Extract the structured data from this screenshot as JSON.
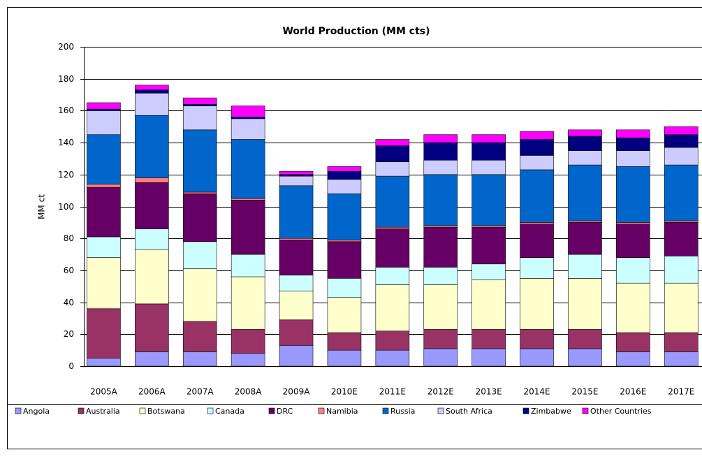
{
  "chart_data": {
    "type": "stacked_bar",
    "title": "World Production (MM cts)",
    "y_label": "MM ct",
    "categories": [
      "2005A",
      "2006A",
      "2007A",
      "2008A",
      "2009A",
      "2010E",
      "2011E",
      "2012E",
      "2013E",
      "2014E",
      "2015E",
      "2016E",
      "2017E"
    ],
    "series": [
      {
        "name": "Angola",
        "color": "#9999ff",
        "values": [
          5,
          9,
          9,
          8,
          13,
          10,
          10,
          11,
          11,
          11,
          11,
          9,
          9
        ]
      },
      {
        "name": "Australia",
        "color": "#993366",
        "values": [
          31,
          30,
          19,
          15,
          16,
          11,
          12,
          12,
          12,
          12,
          12,
          12,
          12
        ]
      },
      {
        "name": "Botswana",
        "color": "#ffffcc",
        "values": [
          32,
          34,
          33,
          33,
          18,
          22,
          29,
          28,
          31,
          32,
          32,
          31,
          31
        ]
      },
      {
        "name": "Canada",
        "color": "#ccffff",
        "values": [
          13,
          13,
          17,
          14,
          10,
          12,
          11,
          11,
          10,
          13,
          15,
          16,
          17
        ]
      },
      {
        "name": "DRC",
        "color": "#660066",
        "values": [
          31,
          29,
          30,
          34,
          22,
          23,
          24,
          25,
          23,
          21,
          20,
          21,
          21
        ]
      },
      {
        "name": "Namibia",
        "color": "#ff8080",
        "values": [
          2,
          3,
          1,
          1,
          1,
          1,
          1,
          1,
          1,
          1,
          1,
          1,
          1
        ]
      },
      {
        "name": "Russia",
        "color": "#0066cc",
        "values": [
          31,
          39,
          39,
          37,
          33,
          29,
          32,
          32,
          32,
          33,
          35,
          35,
          35
        ]
      },
      {
        "name": "South Africa",
        "color": "#ccccff",
        "values": [
          15,
          14,
          15,
          13,
          6,
          9,
          9,
          9,
          9,
          9,
          9,
          10,
          11
        ]
      },
      {
        "name": "Zimbabwe",
        "color": "#000080",
        "values": [
          1,
          2,
          1,
          1,
          1,
          5,
          10,
          11,
          11,
          10,
          9,
          8,
          8
        ]
      },
      {
        "name": "Other Countries",
        "color": "#ff00ff",
        "values": [
          4,
          3,
          4,
          7,
          2,
          3,
          4,
          5,
          5,
          5,
          4,
          5,
          5
        ]
      }
    ],
    "ylim": [
      0,
      200
    ],
    "yticks": [
      0,
      20,
      40,
      60,
      80,
      100,
      120,
      140,
      160,
      180,
      200
    ],
    "grid": true,
    "legend": "bottom"
  }
}
